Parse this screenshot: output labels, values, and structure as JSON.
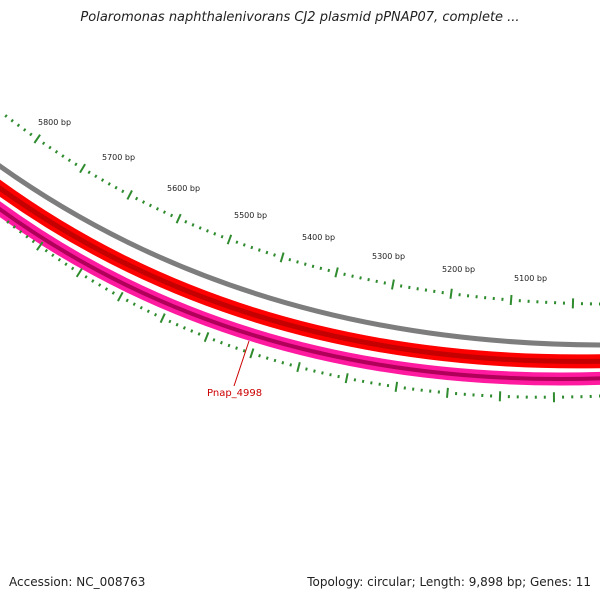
{
  "title": "Polaromonas naphthalenivorans CJ2 plasmid pPNAP07, complete ...",
  "footer": {
    "accession": "Accession: NC_008763",
    "summary": "Topology: circular; Length: 9,898 bp; Genes: 11"
  },
  "ruler": {
    "labels": [
      "5800 bp",
      "5700 bp",
      "5600 bp",
      "5500 bp",
      "5400 bp",
      "5300 bp",
      "5200 bp",
      "5100 bp"
    ]
  },
  "genes": [
    {
      "label": "Pnap_4998"
    }
  ],
  "colors": {
    "tick": "#2e8b2e",
    "backbone": "#808080",
    "forward_track": "#ff0000",
    "reverse_track": "#ff1493",
    "gene_label": "#cc0000"
  }
}
